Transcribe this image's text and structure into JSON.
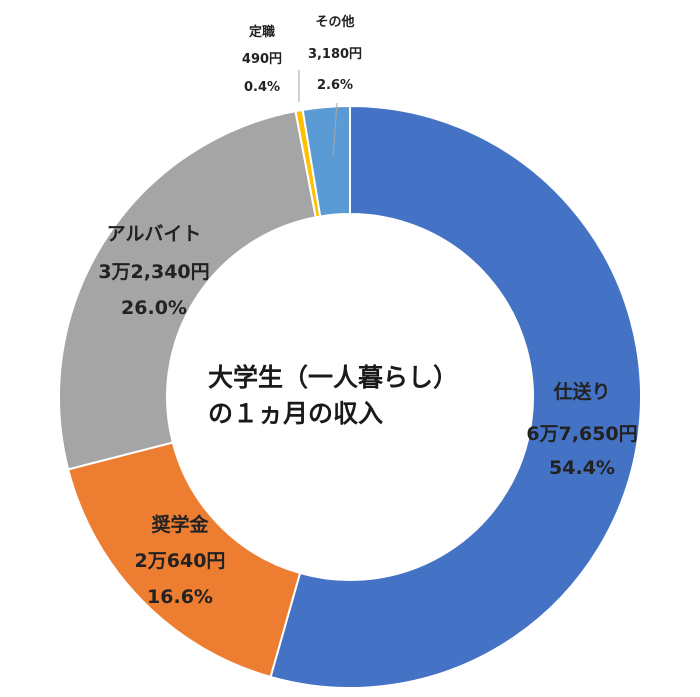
{
  "chart_data": {
    "type": "pie",
    "variant": "donut",
    "title_lines": [
      "大学生（一人暮らし）",
      "の１ヵ月の収入"
    ],
    "slices": [
      {
        "label": "仕送り",
        "amount": "6万7,650円",
        "percent_text": "54.4%",
        "value": 54.4,
        "color": "#4472C4"
      },
      {
        "label": "奨学金",
        "amount": "2万640円",
        "percent_text": "16.6%",
        "value": 16.6,
        "color": "#ED7D31"
      },
      {
        "label": "アルバイト",
        "amount": "3万2,340円",
        "percent_text": "26.0%",
        "value": 26.0,
        "color": "#A5A5A5"
      },
      {
        "label": "定職",
        "amount": "490円",
        "percent_text": "0.4%",
        "value": 0.4,
        "color": "#FFC000"
      },
      {
        "label": "その他",
        "amount": "3,180円",
        "percent_text": "2.6%",
        "value": 2.6,
        "color": "#5B9BD5"
      }
    ],
    "legend": "none"
  }
}
